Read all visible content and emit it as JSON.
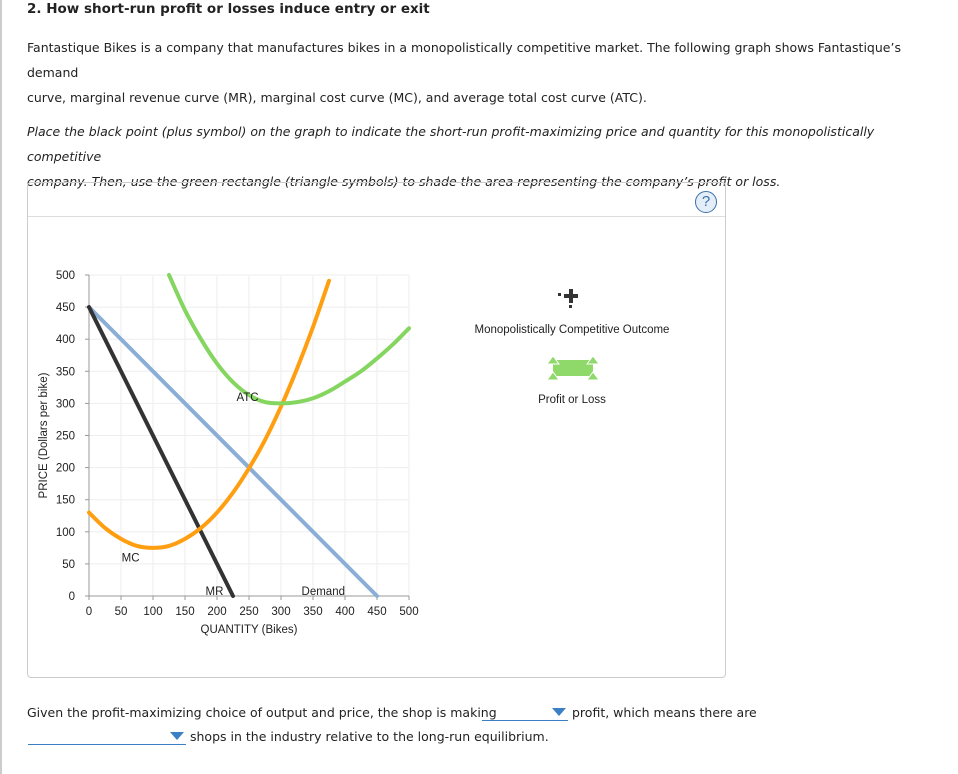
{
  "title": "2. How short-run profit or losses induce entry or exit",
  "intro": [
    "Fantastique Bikes is a company that manufactures bikes in a monopolistically competitive market. The following graph shows Fantastique’s demand",
    "curve, marginal revenue curve (MR), marginal cost curve (MC), and average total cost curve (ATC)."
  ],
  "instructions": [
    "Place the black point (plus symbol) on the graph to indicate the short-run profit-maximizing price and quantity for this monopolistically competitive",
    "company. Then, use the green rectangle (triangle symbols) to shade the area representing the company’s profit or loss."
  ],
  "help_label": "?",
  "legend": {
    "point_label": "Monopolistically Competitive Outcome",
    "rect_label": "Profit or Loss",
    "point_color": "#333333",
    "rect_color": "#8fd86a"
  },
  "chart_data": {
    "type": "line",
    "xlabel": "QUANTITY (Bikes)",
    "ylabel": "PRICE (Dollars per bike)",
    "xlim": [
      0,
      500
    ],
    "ylim": [
      0,
      500
    ],
    "xticks": [
      0,
      50,
      100,
      150,
      200,
      250,
      300,
      350,
      400,
      450,
      500
    ],
    "yticks": [
      0,
      50,
      100,
      150,
      200,
      250,
      300,
      350,
      400,
      450,
      500
    ],
    "grid": true,
    "series": [
      {
        "name": "Demand",
        "color": "#8aaed6",
        "x": [
          0,
          450
        ],
        "y": [
          450,
          0
        ]
      },
      {
        "name": "MR",
        "color": "#333333",
        "x": [
          0,
          225
        ],
        "y": [
          450,
          0
        ]
      },
      {
        "name": "MC",
        "color": "#ff9e10",
        "x": [
          0,
          25,
          50,
          75,
          100,
          125,
          150,
          175,
          200,
          225,
          250,
          275,
          300,
          325,
          350,
          375
        ],
        "y": [
          130,
          106,
          89,
          78,
          75,
          78,
          89,
          106,
          130,
          161,
          199,
          243,
          295,
          354,
          419,
          491
        ]
      },
      {
        "name": "ATC",
        "color": "#85d660",
        "x": [
          125,
          150,
          175,
          200,
          225,
          250,
          275,
          300,
          325,
          350,
          375,
          400,
          425,
          450,
          475,
          500
        ],
        "y": [
          500,
          445,
          400,
          362,
          333,
          313,
          302,
          300,
          302,
          308,
          319,
          334,
          350,
          370,
          392,
          417
        ]
      }
    ]
  },
  "question": {
    "part1": "Given the profit-maximizing choice of output and price, the shop is making",
    "part2": "profit, which means there are",
    "part3": "shops in the industry relative to the long-run equilibrium.",
    "dropdown1": "",
    "dropdown2": ""
  }
}
